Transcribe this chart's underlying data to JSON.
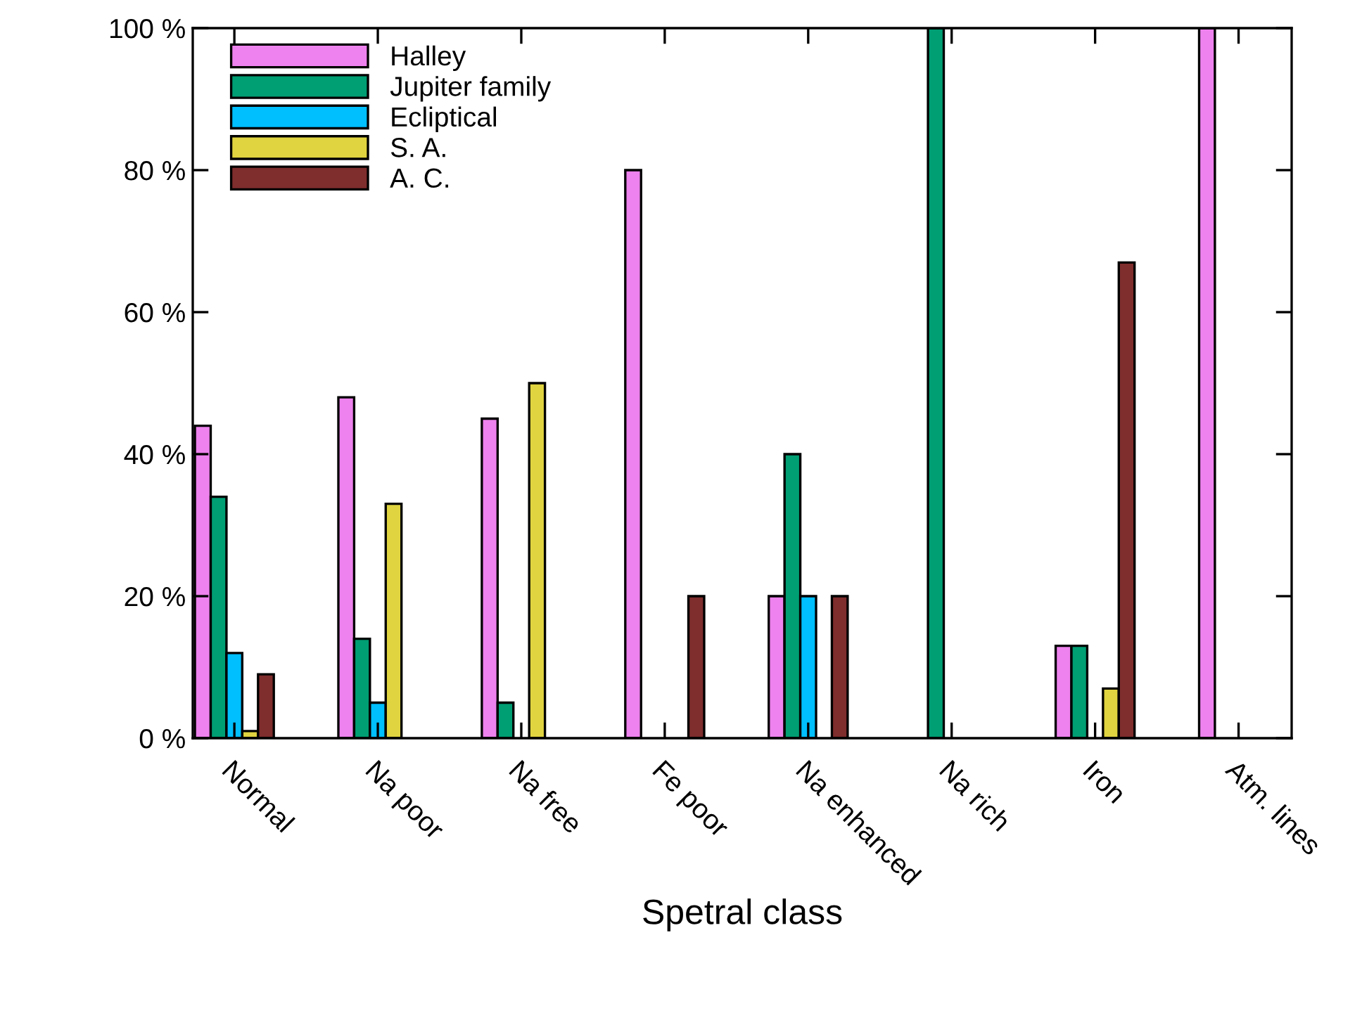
{
  "chart_data": {
    "type": "bar",
    "xlabel": "Spetral class",
    "categories": [
      "Normal",
      "Na poor",
      "Na free",
      "Fe poor",
      "Na enhanced",
      "Na rich",
      "Iron",
      "Atm. lines"
    ],
    "series": [
      {
        "name": "Halley",
        "color": "#ee82ee",
        "values": [
          44,
          48,
          45,
          80,
          20,
          null,
          13,
          100
        ]
      },
      {
        "name": "Jupiter family",
        "color": "#009e73",
        "values": [
          34,
          14,
          5,
          null,
          40,
          100,
          13,
          null
        ]
      },
      {
        "name": "Ecliptical",
        "color": "#00bfff",
        "values": [
          12,
          5,
          null,
          null,
          20,
          null,
          null,
          null
        ]
      },
      {
        "name": "S. A.",
        "color": "#e0d440",
        "values": [
          1,
          33,
          50,
          null,
          null,
          null,
          7,
          null
        ]
      },
      {
        "name": "A. C.",
        "color": "#7f2d2d",
        "values": [
          9,
          null,
          null,
          20,
          20,
          null,
          67,
          null
        ]
      }
    ],
    "ylim": [
      0,
      100
    ],
    "yticks": [
      {
        "value": 0,
        "label": "0 %"
      },
      {
        "value": 20,
        "label": "20 %"
      },
      {
        "value": 40,
        "label": "40 %"
      },
      {
        "value": 60,
        "label": "60 %"
      },
      {
        "value": 80,
        "label": "80 %"
      },
      {
        "value": 100,
        "label": "100 %"
      }
    ],
    "grid": false,
    "legend": "top left"
  }
}
